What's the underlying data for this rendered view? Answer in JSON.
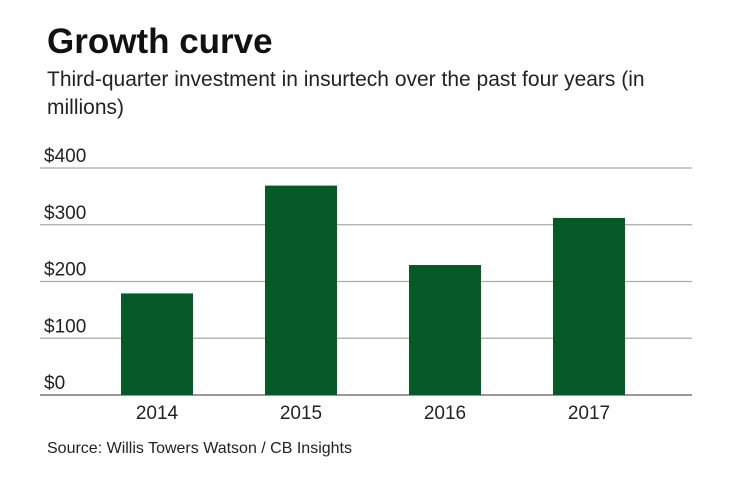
{
  "chart_data": {
    "type": "bar",
    "title": "Growth curve",
    "subtitle": "Third-quarter investment in insurtech over the past four years (in millions)",
    "categories": [
      "2014",
      "2015",
      "2016",
      "2017"
    ],
    "values": [
      179,
      369,
      229,
      312
    ],
    "xlabel": "",
    "ylabel": "",
    "ylim": [
      0,
      400
    ],
    "yticks": [
      0,
      100,
      200,
      300,
      400
    ],
    "ytick_labels": [
      "$0",
      "$100",
      "$200",
      "$300",
      "$400"
    ],
    "grid": true,
    "bar_color": "#055a28",
    "source": "Source: Willis Towers Watson / CB Insights"
  }
}
